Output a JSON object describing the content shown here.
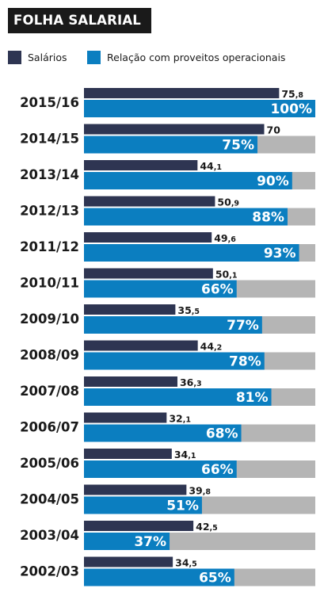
{
  "title": "FOLHA SALARIAL",
  "colors": {
    "salarios": "#2e3552",
    "relacao": "#0b7ec0",
    "track": "#b5b5b5",
    "text": "#1a1a1a"
  },
  "chart_data": {
    "type": "bar",
    "orientation": "horizontal",
    "title": "FOLHA SALARIAL",
    "legend_position": "top-left",
    "categories": [
      "2015/16",
      "2014/15",
      "2013/14",
      "2012/13",
      "2011/12",
      "2010/11",
      "2009/10",
      "2008/09",
      "2007/08",
      "2006/07",
      "2005/06",
      "2004/05",
      "2003/04",
      "2002/03"
    ],
    "series": [
      {
        "name": "Salários",
        "values": [
          75.8,
          70,
          44.1,
          50.9,
          49.6,
          50.1,
          35.5,
          44.2,
          36.3,
          32.1,
          34.1,
          39.8,
          42.5,
          34.5
        ],
        "labels": [
          [
            "75",
            ",8"
          ],
          [
            "70",
            ""
          ],
          [
            "44",
            ",1"
          ],
          [
            "50",
            ",9"
          ],
          [
            "49",
            ",6"
          ],
          [
            "50",
            ",1"
          ],
          [
            "35",
            ",5"
          ],
          [
            "44",
            ",2"
          ],
          [
            "36",
            ",3"
          ],
          [
            "32",
            ",1"
          ],
          [
            "34",
            ",1"
          ],
          [
            "39",
            ",8"
          ],
          [
            "42",
            ",5"
          ],
          [
            "34",
            ",5"
          ]
        ]
      },
      {
        "name": "Relação com proveitos operacionais",
        "values": [
          100,
          75,
          90,
          88,
          93,
          66,
          77,
          78,
          81,
          68,
          66,
          51,
          37,
          65
        ],
        "labels": [
          "100%",
          "75%",
          "90%",
          "88%",
          "93%",
          "66%",
          "77%",
          "78%",
          "81%",
          "68%",
          "66%",
          "51%",
          "37%",
          "65%"
        ],
        "max": 100
      }
    ]
  }
}
